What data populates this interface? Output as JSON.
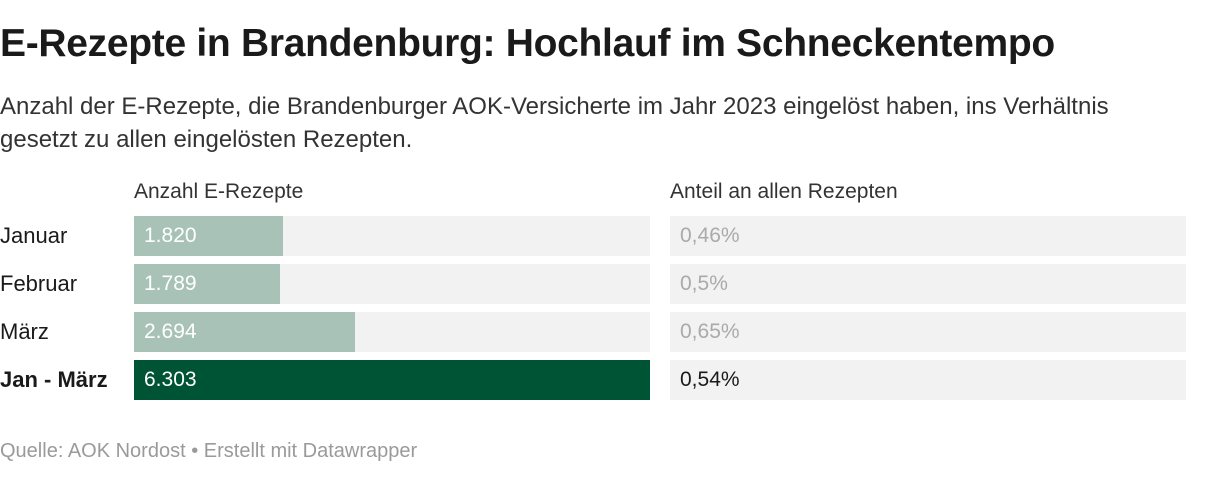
{
  "title": "E-Rezepte in Brandenburg: Hochlauf im Schneckentempo",
  "subtitle": "Anzahl der E-Rezepte, die Brandenburger AOK-Versicherte im Jahr 2023 eingelöst haben, ins Verhältnis gesetzt zu allen eingelösten Rezepten.",
  "footer": "Quelle: AOK Nordost • Erstellt mit Datawrapper",
  "colors": {
    "bar_month": "#a8c2b7",
    "bar_total": "#005436",
    "track": "#f2f2f2"
  },
  "chart_data": {
    "type": "bar",
    "columns": [
      "Anzahl E-Rezepte",
      "Anteil an allen Rezepten"
    ],
    "categories": [
      "Januar",
      "Februar",
      "März",
      "Jan - März"
    ],
    "series": [
      {
        "name": "Anzahl E-Rezepte",
        "values": [
          1820,
          1789,
          2694,
          6303
        ],
        "labels": [
          "1.820",
          "1.789",
          "2.694",
          "6.303"
        ]
      },
      {
        "name": "Anteil an allen Rezepten",
        "values": [
          0.46,
          0.5,
          0.65,
          0.54
        ],
        "labels": [
          "0,46%",
          "0,5%",
          "0,65%",
          "0,54%"
        ]
      }
    ],
    "highlight_category": "Jan - März",
    "xlim": [
      0,
      6303
    ]
  }
}
